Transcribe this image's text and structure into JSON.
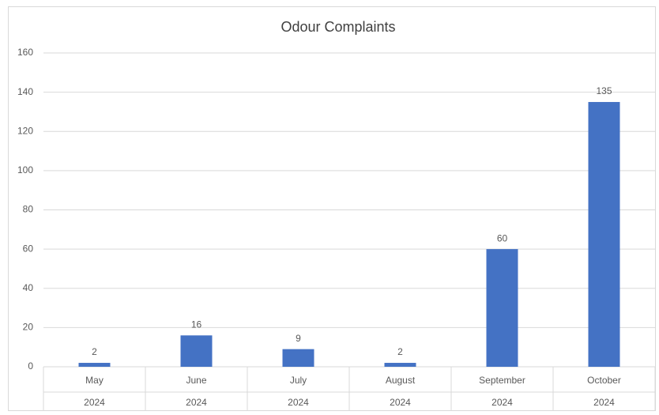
{
  "chart_data": {
    "type": "bar",
    "title": "Odour Complaints",
    "categories": [
      "May",
      "June",
      "July",
      "August",
      "September",
      "October"
    ],
    "category_years": [
      "2024",
      "2024",
      "2024",
      "2024",
      "2024",
      "2024"
    ],
    "values": [
      2,
      16,
      9,
      2,
      60,
      135
    ],
    "color": "#4472c4",
    "ylim": [
      0,
      160
    ],
    "yticks": [
      0,
      20,
      40,
      60,
      80,
      100,
      120,
      140,
      160
    ],
    "grid": true
  }
}
